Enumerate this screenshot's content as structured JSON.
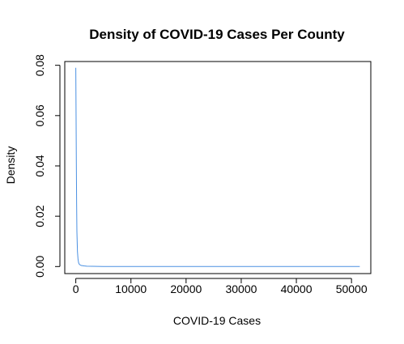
{
  "chart_data": {
    "type": "line",
    "title": "Density of COVID-19 Cases Per County",
    "xlabel": "COVID-19 Cases",
    "ylabel": "Density",
    "xlim": [
      -2000,
      53500
    ],
    "ylim": [
      -0.0028,
      0.0815
    ],
    "x_ticks": [
      0,
      10000,
      20000,
      30000,
      40000,
      50000
    ],
    "x_tick_labels": [
      "0",
      "10000",
      "20000",
      "30000",
      "40000",
      "50000"
    ],
    "y_ticks": [
      0.0,
      0.02,
      0.04,
      0.06,
      0.08
    ],
    "y_tick_labels": [
      "0.00",
      "0.02",
      "0.04",
      "0.06",
      "0.08"
    ],
    "grid": false,
    "series": [
      {
        "color": "#4a90e2",
        "x": [
          0,
          50,
          100,
          150,
          200,
          300,
          400,
          500,
          600,
          800,
          1000,
          1500,
          2000,
          3000,
          5000,
          10000,
          20000,
          30000,
          40000,
          51500
        ],
        "y": [
          0.079,
          0.06,
          0.041,
          0.025,
          0.014,
          0.006,
          0.003,
          0.0016,
          0.001,
          0.0006,
          0.0004,
          0.00025,
          0.00015,
          8e-05,
          3e-05,
          1e-05,
          5e-06,
          3e-06,
          2e-06,
          1e-06
        ]
      }
    ]
  }
}
